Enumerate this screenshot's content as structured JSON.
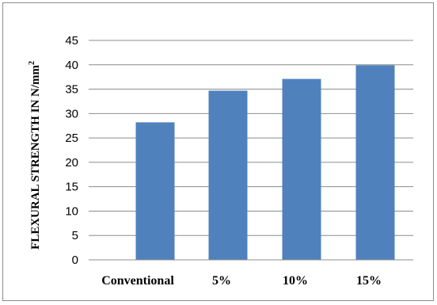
{
  "chart_data": {
    "type": "bar",
    "categories": [
      "Conventional",
      "5%",
      "10%",
      "15%"
    ],
    "values": [
      28.2,
      34.7,
      37.1,
      39.9
    ],
    "title": "",
    "xlabel": "",
    "ylabel": "FLEXURAL STRENGTH IN N/mm",
    "ylabel_superscript": "2",
    "ylim": [
      0,
      45
    ],
    "yticks": [
      0,
      5,
      10,
      15,
      20,
      25,
      30,
      35,
      40,
      45
    ],
    "grid": "horizontal",
    "legend": "none",
    "colors": {
      "bar": "#4f81bd",
      "grid": "#8c8c8c",
      "axis": "#8c8c8c",
      "frame": "#8c8c8c"
    }
  }
}
